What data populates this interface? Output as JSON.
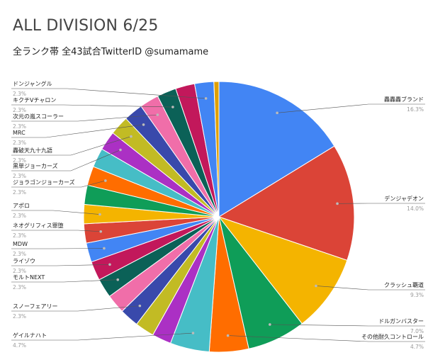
{
  "chart_data": {
    "type": "pie",
    "title": "ALL DIVISION 6/25",
    "subtitle": "全ランク帯 全43試合TwitterID @sumamame",
    "slices": [
      {
        "label": "轟轟轟ブランド",
        "pct_label": "16.3%",
        "value": 16.3,
        "color": "#4285f4"
      },
      {
        "label": "デンジャデオン",
        "pct_label": "14.0%",
        "value": 14.0,
        "color": "#db4437"
      },
      {
        "label": "クラッシュ覇道",
        "pct_label": "9.3%",
        "value": 9.3,
        "color": "#f4b400"
      },
      {
        "label": "ドルガンバスター",
        "pct_label": "7.0%",
        "value": 7.0,
        "color": "#0f9d58"
      },
      {
        "label": "その他耐久コントロール",
        "pct_label": "4.7%",
        "value": 4.7,
        "color": "#ff6d00"
      },
      {
        "label": "ゲイルナハト",
        "pct_label": "4.7%",
        "value": 4.7,
        "color": "#46bdc6"
      },
      {
        "label": "",
        "pct_label": "",
        "value": 2.3,
        "color": "#ab30c4"
      },
      {
        "label": "",
        "pct_label": "",
        "value": 2.3,
        "color": "#c2bb24"
      },
      {
        "label": "スノーフェアリー",
        "pct_label": "2.3%",
        "value": 2.3,
        "color": "#3949ab"
      },
      {
        "label": "",
        "pct_label": "",
        "value": 2.3,
        "color": "#f06ea9"
      },
      {
        "label": "モルトNEXT",
        "pct_label": "2.3%",
        "value": 2.3,
        "color": "#0b6157"
      },
      {
        "label": "ライゾウ",
        "pct_label": "2.3%",
        "value": 2.3,
        "color": "#c2185b"
      },
      {
        "label": "MDW",
        "pct_label": "2.3%",
        "value": 2.3,
        "color": "#4285f4"
      },
      {
        "label": "ネオグリフィス罪堕",
        "pct_label": "2.3%",
        "value": 2.3,
        "color": "#db4437"
      },
      {
        "label": "アポロ",
        "pct_label": "2.3%",
        "value": 2.3,
        "color": "#f4b400"
      },
      {
        "label": "",
        "pct_label": "",
        "value": 2.3,
        "color": "#0f9d58"
      },
      {
        "label": "ジョラゴンジョーカーズ",
        "pct_label": "2.3%",
        "value": 2.3,
        "color": "#ff6d00"
      },
      {
        "label": "",
        "pct_label": "",
        "value": 2.3,
        "color": "#46bdc6"
      },
      {
        "label": "黒単ジョーカーズ",
        "pct_label": "2.3%",
        "value": 2.3,
        "color": "#ab30c4"
      },
      {
        "label": "轟破天九十九語",
        "pct_label": "2.3%",
        "value": 2.3,
        "color": "#c2bb24"
      },
      {
        "label": "MRC",
        "pct_label": "2.3%",
        "value": 2.3,
        "color": "#3949ab"
      },
      {
        "label": "次元の嵐スコーラー",
        "pct_label": "2.3%",
        "value": 2.3,
        "color": "#f06ea9"
      },
      {
        "label": "キクチVチャロン",
        "pct_label": "2.3%",
        "value": 2.3,
        "color": "#0b6157"
      },
      {
        "label": "",
        "pct_label": "",
        "value": 2.3,
        "color": "#c2185b"
      },
      {
        "label": "ドンジャングル",
        "pct_label": "2.3%",
        "value": 2.3,
        "color": "#4285f4"
      },
      {
        "label": "",
        "pct_label": "",
        "value": 0.6,
        "color": "#e0a000"
      }
    ],
    "legend": "none"
  }
}
